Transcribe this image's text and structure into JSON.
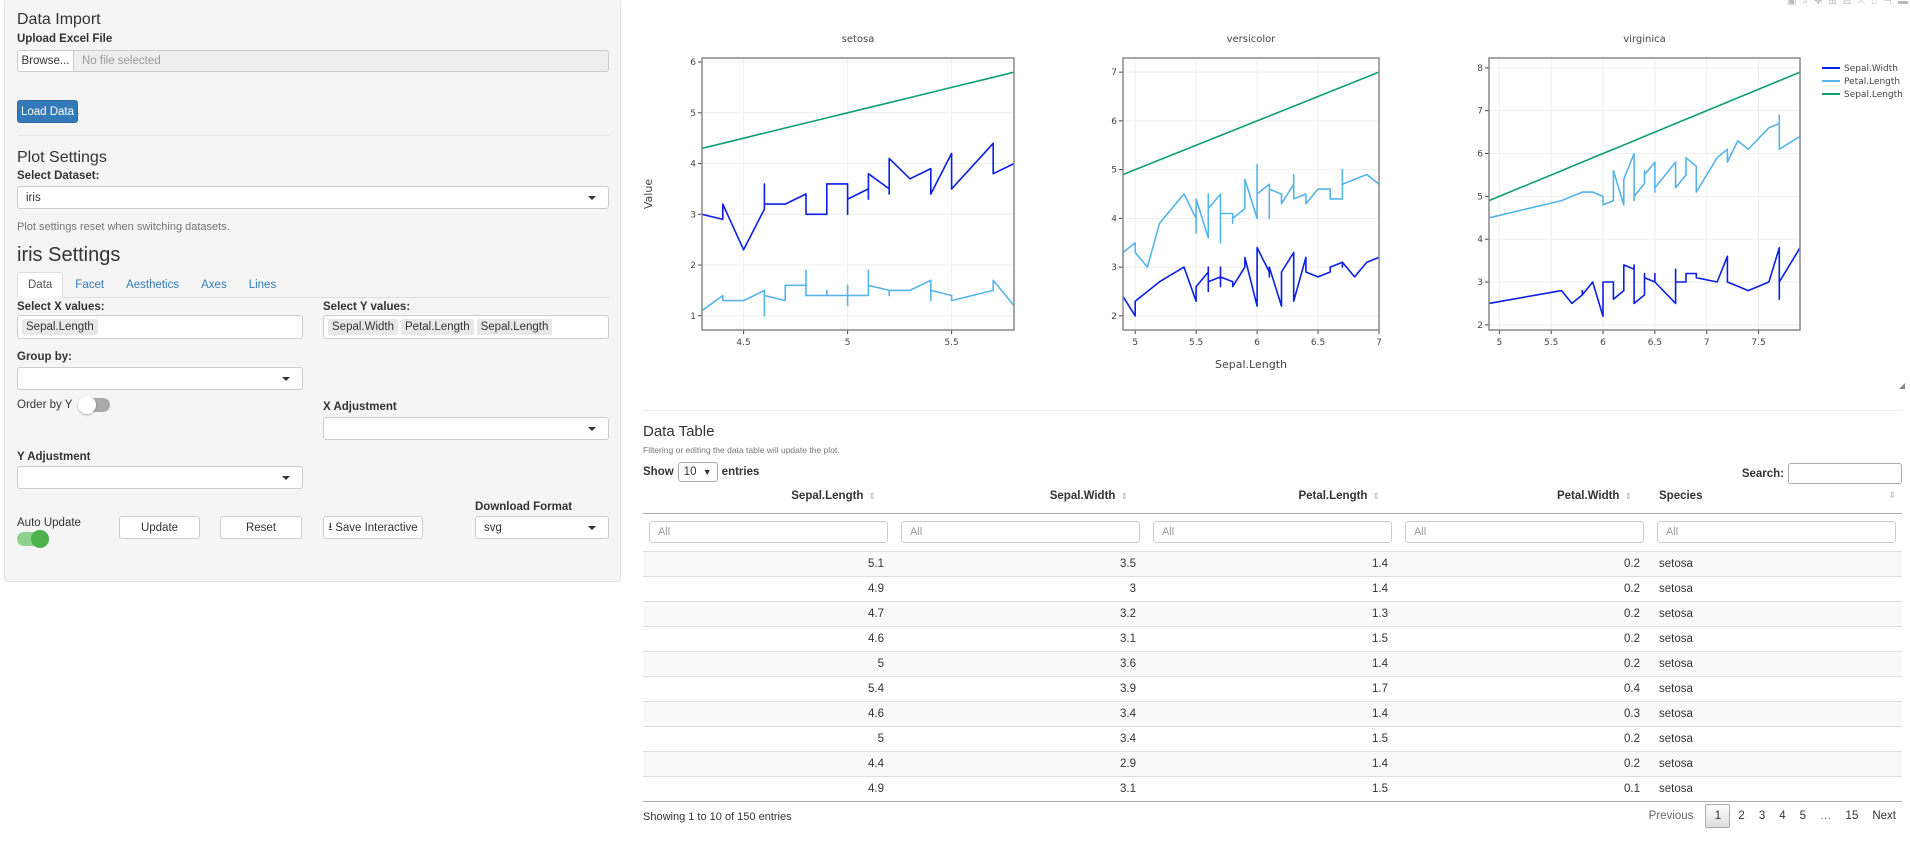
{
  "sidebar": {
    "data_import_title": "Data Import",
    "upload_label": "Upload Excel File",
    "browse_label": "Browse...",
    "file_placeholder": "No file selected",
    "load_button": "Load Data",
    "plot_settings_title": "Plot Settings",
    "dataset_label": "Select Dataset:",
    "dataset_value": "iris",
    "dataset_help": "Plot settings reset when switching datasets.",
    "settings_title": "iris Settings",
    "tabs": [
      {
        "label": "Data",
        "active": true
      },
      {
        "label": "Facet"
      },
      {
        "label": "Aesthetics"
      },
      {
        "label": "Axes"
      },
      {
        "label": "Lines"
      }
    ],
    "x_label": "Select X values:",
    "x_values": [
      "Sepal.Length"
    ],
    "y_label": "Select Y values:",
    "y_values": [
      "Sepal.Width",
      "Petal.Length",
      "Sepal.Length"
    ],
    "group_label": "Group by:",
    "group_value": "",
    "order_label": "Order by Y",
    "order_on": false,
    "x_adj_label": "X Adjustment",
    "x_adj_value": "",
    "y_adj_label": "Y Adjustment",
    "y_adj_value": "",
    "auto_update_label": "Auto Update",
    "auto_update_on": true,
    "update_button": "Update",
    "reset_button": "Reset",
    "save_button": "Save Interactive",
    "download_label": "Download Format",
    "download_value": "svg",
    "accent": "#337ab7",
    "toggle_on_color": "#5cb85c"
  },
  "chart_data": {
    "type": "line",
    "ylabel": "Value",
    "xlabel": "Sepal.Length",
    "grid": true,
    "legend": {
      "position": "right",
      "entries": [
        "Sepal.Width",
        "Petal.Length",
        "Sepal.Length"
      ]
    },
    "colors": {
      "Sepal.Width": "#0b1fe6",
      "Petal.Length": "#56b4e9",
      "Sepal.Length": "#0e9e72"
    },
    "facets": [
      {
        "title": "setosa",
        "xlim": [
          4.3,
          5.8
        ],
        "ylim": [
          0.72,
          6.08
        ],
        "xticks": [
          4.5,
          5,
          5.5
        ],
        "yticks": [
          1,
          2,
          3,
          4,
          5,
          6
        ],
        "x": [
          5.1,
          4.9,
          4.7,
          4.6,
          5.0,
          5.4,
          4.6,
          5.0,
          4.4,
          4.9,
          5.4,
          4.8,
          4.8,
          4.3,
          5.8,
          5.7,
          5.4,
          5.1,
          5.7,
          5.1,
          5.4,
          5.1,
          4.6,
          5.1,
          4.8,
          5.0,
          5.0,
          5.2,
          5.2,
          4.7,
          4.8,
          5.4,
          5.2,
          5.5,
          4.9,
          5.0,
          5.5,
          4.9,
          4.4,
          5.1,
          5.0,
          4.5,
          4.4,
          5.0,
          5.1,
          4.8,
          5.1,
          4.6,
          5.3,
          5.0
        ],
        "series": [
          {
            "name": "Sepal.Width",
            "values": [
              3.5,
              3.0,
              3.2,
              3.1,
              3.6,
              3.9,
              3.4,
              3.4,
              2.9,
              3.1,
              3.7,
              3.4,
              3.0,
              3.0,
              4.0,
              4.4,
              3.9,
              3.5,
              3.8,
              3.8,
              3.4,
              3.7,
              3.6,
              3.3,
              3.4,
              3.0,
              3.4,
              3.5,
              3.4,
              3.2,
              3.1,
              3.4,
              4.1,
              4.2,
              3.1,
              3.2,
              3.5,
              3.6,
              3.0,
              3.4,
              3.5,
              2.3,
              3.2,
              3.5,
              3.8,
              3.0,
              3.8,
              3.2,
              3.7,
              3.3
            ]
          },
          {
            "name": "Petal.Length",
            "values": [
              1.4,
              1.4,
              1.3,
              1.5,
              1.4,
              1.7,
              1.4,
              1.5,
              1.4,
              1.5,
              1.5,
              1.6,
              1.4,
              1.1,
              1.2,
              1.5,
              1.3,
              1.4,
              1.7,
              1.5,
              1.7,
              1.5,
              1.0,
              1.7,
              1.9,
              1.6,
              1.6,
              1.5,
              1.4,
              1.6,
              1.6,
              1.5,
              1.5,
              1.4,
              1.5,
              1.2,
              1.3,
              1.4,
              1.3,
              1.5,
              1.3,
              1.3,
              1.3,
              1.6,
              1.9,
              1.4,
              1.6,
              1.4,
              1.5,
              1.4
            ]
          },
          {
            "name": "Sepal.Length",
            "values": [
              5.1,
              4.9,
              4.7,
              4.6,
              5.0,
              5.4,
              4.6,
              5.0,
              4.4,
              4.9,
              5.4,
              4.8,
              4.8,
              4.3,
              5.8,
              5.7,
              5.4,
              5.1,
              5.7,
              5.1,
              5.4,
              5.1,
              4.6,
              5.1,
              4.8,
              5.0,
              5.0,
              5.2,
              5.2,
              4.7,
              4.8,
              5.4,
              5.2,
              5.5,
              4.9,
              5.0,
              5.5,
              4.9,
              4.4,
              5.1,
              5.0,
              4.5,
              4.4,
              5.0,
              5.1,
              4.8,
              5.1,
              4.6,
              5.3,
              5.0
            ]
          }
        ]
      },
      {
        "title": "versicolor",
        "xlim": [
          4.9,
          7.0
        ],
        "ylim": [
          1.71,
          7.29
        ],
        "xticks": [
          5,
          5.5,
          6,
          6.5,
          7
        ],
        "yticks": [
          2,
          3,
          4,
          5,
          6,
          7
        ],
        "x": [
          7.0,
          6.4,
          6.9,
          5.5,
          6.5,
          5.7,
          6.3,
          4.9,
          6.6,
          5.2,
          5.0,
          5.9,
          6.0,
          6.1,
          5.6,
          6.7,
          5.6,
          5.8,
          6.2,
          5.6,
          5.9,
          6.1,
          6.3,
          6.1,
          6.4,
          6.6,
          6.8,
          6.7,
          6.0,
          5.7,
          5.5,
          5.5,
          5.8,
          6.0,
          5.4,
          6.0,
          6.7,
          6.3,
          5.6,
          5.5,
          5.5,
          6.1,
          5.8,
          5.0,
          5.6,
          5.7,
          5.7,
          6.2,
          5.1,
          5.7
        ],
        "series": [
          {
            "name": "Sepal.Width",
            "values": [
              3.2,
              3.2,
              3.1,
              2.3,
              2.8,
              2.8,
              3.3,
              2.4,
              2.9,
              2.7,
              2.0,
              3.0,
              2.2,
              2.9,
              2.9,
              3.1,
              3.0,
              2.7,
              2.2,
              2.5,
              3.2,
              2.8,
              2.5,
              2.8,
              2.9,
              3.0,
              2.8,
              3.0,
              2.9,
              2.6,
              2.4,
              2.4,
              2.7,
              2.7,
              3.0,
              3.4,
              3.1,
              2.3,
              3.0,
              2.5,
              2.6,
              3.0,
              2.6,
              2.3,
              2.7,
              3.0,
              2.9,
              2.9,
              2.5,
              2.8
            ]
          },
          {
            "name": "Petal.Length",
            "values": [
              4.7,
              4.5,
              4.9,
              4.0,
              4.6,
              4.5,
              4.7,
              3.3,
              4.6,
              3.9,
              3.5,
              4.2,
              4.0,
              4.7,
              3.6,
              4.4,
              4.5,
              4.1,
              4.5,
              3.9,
              4.8,
              4.0,
              4.9,
              4.7,
              4.3,
              4.4,
              4.8,
              5.0,
              4.5,
              3.5,
              3.8,
              3.7,
              3.9,
              5.1,
              4.5,
              4.5,
              4.7,
              4.4,
              4.1,
              4.0,
              4.4,
              4.6,
              4.0,
              3.3,
              4.2,
              4.2,
              4.2,
              4.3,
              3.0,
              4.1
            ]
          },
          {
            "name": "Sepal.Length",
            "values": [
              7.0,
              6.4,
              6.9,
              5.5,
              6.5,
              5.7,
              6.3,
              4.9,
              6.6,
              5.2,
              5.0,
              5.9,
              6.0,
              6.1,
              5.6,
              6.7,
              5.6,
              5.8,
              6.2,
              5.6,
              5.9,
              6.1,
              6.3,
              6.1,
              6.4,
              6.6,
              6.8,
              6.7,
              6.0,
              5.7,
              5.5,
              5.5,
              5.8,
              6.0,
              5.4,
              6.0,
              6.7,
              6.3,
              5.6,
              5.5,
              5.5,
              6.1,
              5.8,
              5.0,
              5.6,
              5.7,
              5.7,
              6.2,
              5.1,
              5.7
            ]
          }
        ]
      },
      {
        "title": "virginica",
        "xlim": [
          4.9,
          7.9
        ],
        "ylim": [
          1.88,
          8.23
        ],
        "xticks": [
          5,
          5.5,
          6,
          6.5,
          7,
          7.5
        ],
        "yticks": [
          2,
          3,
          4,
          5,
          6,
          7,
          8
        ],
        "x": [
          6.3,
          5.8,
          7.1,
          6.3,
          6.5,
          7.6,
          4.9,
          7.3,
          6.7,
          7.2,
          6.5,
          6.4,
          6.8,
          5.7,
          5.8,
          6.4,
          6.5,
          7.7,
          7.7,
          6.0,
          6.9,
          5.6,
          7.7,
          6.3,
          6.7,
          7.2,
          6.2,
          6.1,
          6.4,
          7.2,
          7.4,
          7.9,
          6.4,
          6.3,
          6.1,
          7.7,
          6.3,
          6.4,
          6.0,
          6.9,
          6.7,
          6.9,
          5.8,
          6.8,
          6.7,
          6.7,
          6.3,
          6.5,
          6.2,
          5.9
        ],
        "series": [
          {
            "name": "Sepal.Width",
            "values": [
              3.3,
              2.7,
              3.0,
              2.9,
              3.0,
              3.0,
              2.5,
              2.9,
              2.5,
              3.6,
              3.2,
              2.7,
              3.0,
              2.5,
              2.8,
              3.2,
              3.0,
              3.8,
              2.6,
              2.2,
              3.2,
              2.8,
              2.8,
              2.7,
              3.3,
              3.2,
              2.8,
              3.0,
              2.8,
              3.0,
              2.8,
              3.8,
              2.8,
              2.8,
              2.6,
              3.0,
              3.4,
              3.1,
              3.0,
              3.1,
              3.1,
              3.1,
              2.7,
              3.2,
              3.3,
              3.0,
              2.5,
              3.0,
              3.4,
              3.0
            ]
          },
          {
            "name": "Petal.Length",
            "values": [
              6.0,
              5.1,
              5.9,
              5.6,
              5.8,
              6.6,
              4.5,
              6.3,
              5.8,
              6.1,
              5.1,
              5.3,
              5.5,
              5.0,
              5.1,
              5.3,
              5.5,
              6.7,
              6.9,
              5.0,
              5.7,
              4.9,
              6.7,
              4.9,
              5.7,
              6.0,
              4.8,
              4.9,
              5.6,
              5.8,
              6.1,
              6.4,
              5.6,
              5.1,
              5.6,
              6.1,
              5.6,
              5.5,
              4.8,
              5.4,
              5.6,
              5.1,
              5.1,
              5.9,
              5.7,
              5.2,
              5.0,
              5.2,
              5.4,
              5.1
            ]
          },
          {
            "name": "Sepal.Length",
            "values": [
              6.3,
              5.8,
              7.1,
              6.3,
              6.5,
              7.6,
              4.9,
              7.3,
              6.7,
              7.2,
              6.5,
              6.4,
              6.8,
              5.7,
              5.8,
              6.4,
              6.5,
              7.7,
              7.7,
              6.0,
              6.9,
              5.6,
              7.7,
              6.3,
              6.7,
              7.2,
              6.2,
              6.1,
              6.4,
              7.2,
              7.4,
              7.9,
              6.4,
              6.3,
              6.1,
              7.7,
              6.3,
              6.4,
              6.0,
              6.9,
              6.7,
              6.9,
              5.8,
              6.8,
              6.7,
              6.7,
              6.3,
              6.5,
              6.2,
              5.9
            ]
          }
        ]
      }
    ]
  },
  "plot_toolbar": {
    "icons": [
      "camera-icon",
      "zoom-icon",
      "pan-icon",
      "zoom-in-icon",
      "zoom-out-icon",
      "autoscale-icon",
      "home-icon",
      "spike-icon",
      "hover-icon"
    ]
  },
  "table": {
    "title": "Data Table",
    "subtitle": "Filtering or editing the data table will update the plot.",
    "show_label": "Show",
    "page_size": "10",
    "entries_label": "entries",
    "search_label": "Search:",
    "search_value": "",
    "columns": [
      "Sepal.Length",
      "Sepal.Width",
      "Petal.Length",
      "Petal.Width",
      "Species"
    ],
    "filter_placeholder": "All",
    "rows": [
      [
        "5.1",
        "3.5",
        "1.4",
        "0.2",
        "setosa"
      ],
      [
        "4.9",
        "3",
        "1.4",
        "0.2",
        "setosa"
      ],
      [
        "4.7",
        "3.2",
        "1.3",
        "0.2",
        "setosa"
      ],
      [
        "4.6",
        "3.1",
        "1.5",
        "0.2",
        "setosa"
      ],
      [
        "5",
        "3.6",
        "1.4",
        "0.2",
        "setosa"
      ],
      [
        "5.4",
        "3.9",
        "1.7",
        "0.4",
        "setosa"
      ],
      [
        "4.6",
        "3.4",
        "1.4",
        "0.3",
        "setosa"
      ],
      [
        "5",
        "3.4",
        "1.5",
        "0.2",
        "setosa"
      ],
      [
        "4.4",
        "2.9",
        "1.4",
        "0.2",
        "setosa"
      ],
      [
        "4.9",
        "3.1",
        "1.5",
        "0.1",
        "setosa"
      ]
    ],
    "info": "Showing 1 to 10 of 150 entries",
    "pagination": {
      "previous": "Previous",
      "pages": [
        "1",
        "2",
        "3",
        "4",
        "5",
        "…",
        "15"
      ],
      "current": "1",
      "next": "Next"
    }
  }
}
